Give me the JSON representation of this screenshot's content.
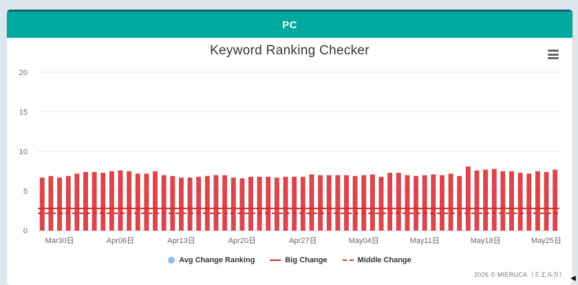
{
  "header": {
    "title": "PC"
  },
  "chart_data": {
    "type": "bar",
    "title": "Keyword Ranking Checker",
    "xlabel": "",
    "ylabel": "",
    "ylim": [
      0,
      20
    ],
    "yticks": [
      0,
      5,
      10,
      15,
      20
    ],
    "xtick_labels": [
      "Mar30日",
      "Apr06日",
      "Apr13日",
      "Apr20日",
      "Apr27日",
      "May04日",
      "May11日",
      "May18日",
      "May25日"
    ],
    "xtick_indices": [
      2,
      9,
      16,
      23,
      30,
      37,
      44,
      51,
      58
    ],
    "series": [
      {
        "name": "Avg Change Ranking",
        "color": "#d9464c",
        "values": [
          6.7,
          6.9,
          6.7,
          6.9,
          7.2,
          7.4,
          7.4,
          7.3,
          7.5,
          7.6,
          7.5,
          7.2,
          7.2,
          7.5,
          7.0,
          6.9,
          6.7,
          6.7,
          6.8,
          6.9,
          7.0,
          7.0,
          6.7,
          6.6,
          6.8,
          6.8,
          6.8,
          6.7,
          6.8,
          6.8,
          6.8,
          7.1,
          7.0,
          7.0,
          7.0,
          7.0,
          6.9,
          7.0,
          7.1,
          6.8,
          7.3,
          7.3,
          7.0,
          6.9,
          7.0,
          7.1,
          7.0,
          7.2,
          6.9,
          8.1,
          7.6,
          7.7,
          7.8,
          7.5,
          7.5,
          7.3,
          7.2,
          7.5,
          7.4,
          7.7
        ]
      }
    ],
    "reference_lines": [
      {
        "name": "Big Change",
        "value": 2.8,
        "style": "solid",
        "color": "#d62728"
      },
      {
        "name": "Middle Change",
        "value": 2.2,
        "style": "dashed",
        "color": "#d62728"
      }
    ],
    "legend": [
      {
        "label": "Avg Change Ranking",
        "marker": "dot",
        "color": "#95bce6"
      },
      {
        "label": "Big Change",
        "marker": "line",
        "color": "#d62728"
      },
      {
        "label": "Middle Change",
        "marker": "dash",
        "color": "#d62728"
      }
    ],
    "grid": true,
    "legend_position": "bottom"
  },
  "credit": "2026 © MIERUCA（ミエルカ）"
}
